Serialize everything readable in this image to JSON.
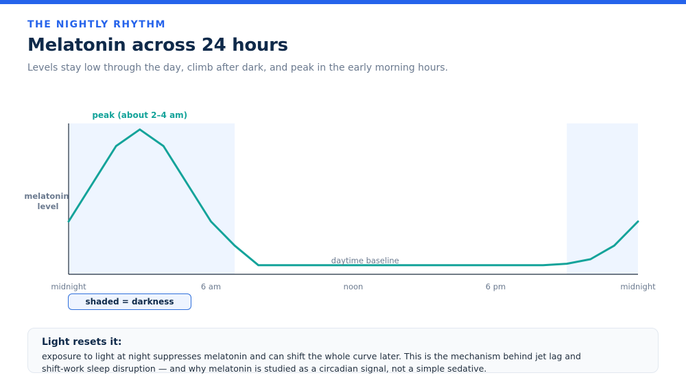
{
  "header": {
    "eyebrow": "THE NIGHTLY RHYTHM",
    "title": "Melatonin across 24 hours",
    "subtitle": "Levels stay low through the day, climb after dark, and peak in the early morning hours."
  },
  "chart_data": {
    "type": "line",
    "title": "Melatonin across 24 hours",
    "xlabel": "",
    "ylabel": "melatonin level",
    "x_tick_labels": [
      "midnight",
      "6 am",
      "noon",
      "6 pm",
      "midnight"
    ],
    "x_tick_hours": [
      0,
      6,
      12,
      18,
      24
    ],
    "xlim": [
      0,
      24
    ],
    "ylim": [
      0,
      100
    ],
    "y_ticks_shown": false,
    "grid": false,
    "series": [
      {
        "color": "#14a39a",
        "x": [
          0,
          1,
          2,
          3,
          4,
          5,
          6,
          7,
          8,
          9,
          10,
          11,
          12,
          13,
          14,
          15,
          16,
          17,
          18,
          19,
          20,
          21,
          22,
          23,
          24
        ],
        "y": [
          35,
          60,
          85,
          96,
          85,
          60,
          35,
          19,
          6,
          6,
          6,
          6,
          6,
          6,
          6,
          6,
          6,
          6,
          6,
          6,
          6,
          7,
          10,
          19,
          35
        ]
      }
    ],
    "shaded_regions": [
      {
        "from": 0,
        "to": 7,
        "meaning": "darkness"
      },
      {
        "from": 21,
        "to": 24,
        "meaning": "darkness"
      }
    ],
    "annotations": [
      {
        "text": "peak (about 2–4 am)",
        "x": 3,
        "color": "#14a39a"
      },
      {
        "text": "daytime baseline",
        "x": 12.5,
        "y": 6
      }
    ],
    "legend": "shaded = darkness",
    "legend_placement": "bottom-left"
  },
  "note": {
    "title": "Light resets it:",
    "body": "exposure to light at night suppresses melatonin and can shift the whole curve later. This is the mechanism behind jet lag and shift-work sleep disruption — and why melatonin is studied as a circadian signal, not a simple sedative."
  },
  "colors": {
    "accent": "#2563eb",
    "curve": "#14a39a",
    "title": "#0f2a4a",
    "shade": "#eef5ff"
  }
}
